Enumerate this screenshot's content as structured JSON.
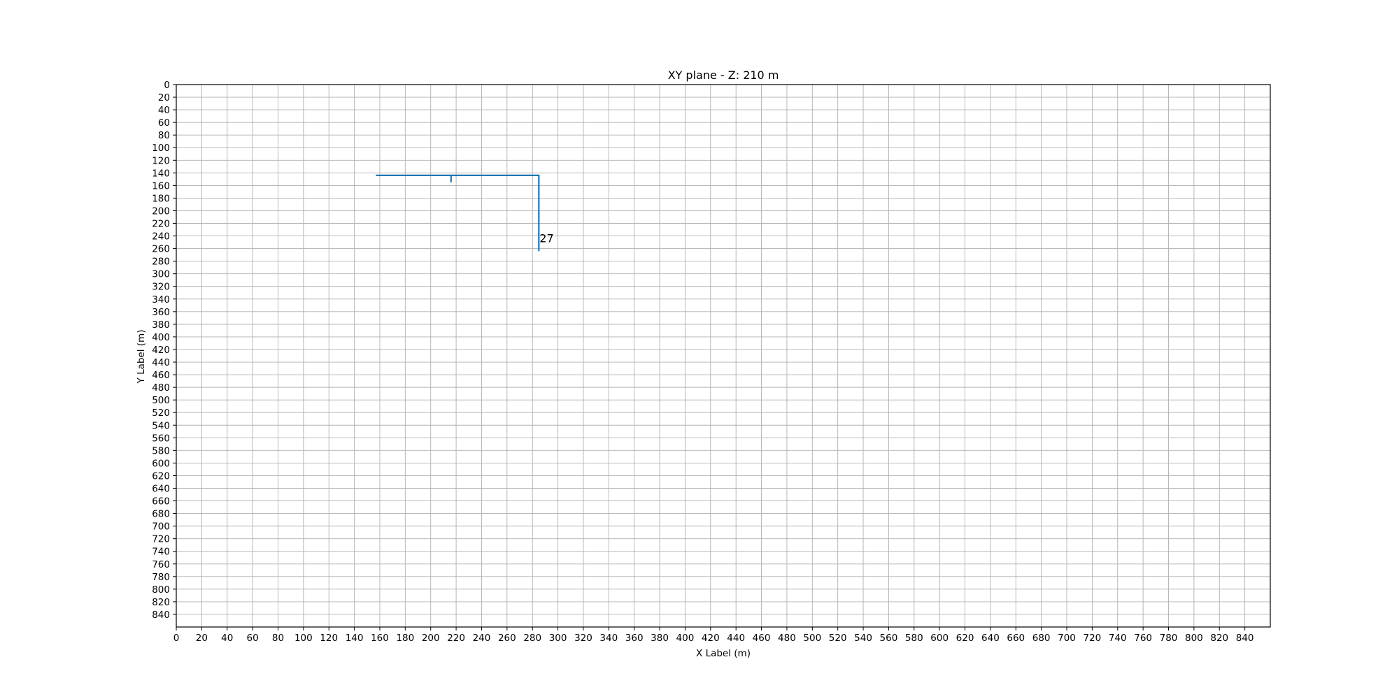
{
  "chart_data": {
    "type": "line",
    "title": "XY plane - Z: 210 m",
    "xlabel": "X Label (m)",
    "ylabel": "Y Label (m)",
    "xlim": [
      0,
      860
    ],
    "ylim": [
      860,
      0
    ],
    "y_inverted": true,
    "grid": true,
    "x_ticks": [
      0,
      20,
      40,
      60,
      80,
      100,
      120,
      140,
      160,
      180,
      200,
      220,
      240,
      260,
      280,
      300,
      320,
      340,
      360,
      380,
      400,
      420,
      440,
      460,
      480,
      500,
      520,
      540,
      560,
      580,
      600,
      620,
      640,
      660,
      680,
      700,
      720,
      740,
      760,
      780,
      800,
      820,
      840
    ],
    "y_ticks": [
      0,
      20,
      40,
      60,
      80,
      100,
      120,
      140,
      160,
      180,
      200,
      220,
      240,
      260,
      280,
      300,
      320,
      340,
      360,
      380,
      400,
      420,
      440,
      460,
      480,
      500,
      520,
      540,
      560,
      580,
      600,
      620,
      640,
      660,
      680,
      700,
      720,
      740,
      760,
      780,
      800,
      820,
      840
    ],
    "series": [
      {
        "color": "#1f77b4",
        "segments": [
          [
            [
              157,
              144
            ],
            [
              285,
              144
            ],
            [
              285,
              264
            ]
          ],
          [
            [
              216,
              144
            ],
            [
              216,
              155
            ]
          ]
        ]
      }
    ],
    "annotations": [
      {
        "text": "27",
        "x": 285,
        "y": 250
      }
    ]
  }
}
